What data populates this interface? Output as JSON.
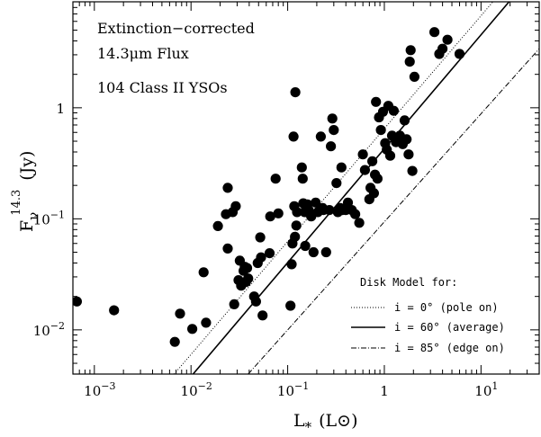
{
  "chart_data": {
    "type": "scatter",
    "annotation": [
      "Extinction−corrected",
      "14.3μm Flux",
      "104 Class II YSOs"
    ],
    "xlabel": {
      "main": "L",
      "sub": "*",
      "unit": "(L⊙)"
    },
    "ylabel": {
      "main": "F",
      "sub": "ν",
      "sup": "14.3",
      "unit": "(Jy)"
    },
    "x_scale": "log",
    "y_scale": "log",
    "xlim": [
      0.0006,
      40
    ],
    "ylim": [
      0.004,
      9
    ],
    "x_ticks": [
      {
        "value": 0.001,
        "base": "10",
        "exp": "−3"
      },
      {
        "value": 0.01,
        "base": "10",
        "exp": "−2"
      },
      {
        "value": 0.1,
        "base": "10",
        "exp": "−1"
      },
      {
        "value": 1,
        "base": "1",
        "exp": ""
      },
      {
        "value": 10,
        "base": "10",
        "exp": "1"
      }
    ],
    "y_ticks": [
      {
        "value": 0.01,
        "base": "10",
        "exp": "−2"
      },
      {
        "value": 0.1,
        "base": "10",
        "exp": "−1"
      },
      {
        "value": 1,
        "base": "1",
        "exp": ""
      }
    ],
    "grid": false,
    "legend": {
      "title": "Disk Model for:",
      "placement": "bottom-right",
      "entries": [
        {
          "label": "i = 0° (pole on)",
          "style": "dotted"
        },
        {
          "label": "i = 60° (average)",
          "style": "solid"
        },
        {
          "label": "i = 85° (edge on)",
          "style": "dashdot"
        }
      ]
    },
    "lines": [
      {
        "label": "i = 0° (pole on)",
        "style": "dotted",
        "points": [
          [
            0.0067,
            0.004
          ],
          [
            13.3,
            9
          ]
        ]
      },
      {
        "label": "i = 60° (average)",
        "style": "solid",
        "points": [
          [
            0.0105,
            0.004
          ],
          [
            19.5,
            9
          ]
        ]
      },
      {
        "label": "i = 85° (edge on)",
        "style": "dashdot",
        "points": [
          [
            0.039,
            0.004
          ],
          [
            40,
            3.4
          ]
        ]
      }
    ],
    "points": [
      [
        0.00066,
        0.018
      ],
      [
        0.0016,
        0.015
      ],
      [
        0.0068,
        0.0078
      ],
      [
        0.0077,
        0.014
      ],
      [
        0.0103,
        0.0102
      ],
      [
        0.0135,
        0.033
      ],
      [
        0.0143,
        0.0116
      ],
      [
        0.019,
        0.086
      ],
      [
        0.023,
        0.11
      ],
      [
        0.024,
        0.19
      ],
      [
        0.024,
        0.054
      ],
      [
        0.027,
        0.115
      ],
      [
        0.028,
        0.017
      ],
      [
        0.029,
        0.13
      ],
      [
        0.031,
        0.028
      ],
      [
        0.032,
        0.042
      ],
      [
        0.033,
        0.025
      ],
      [
        0.035,
        0.034
      ],
      [
        0.036,
        0.037
      ],
      [
        0.037,
        0.027
      ],
      [
        0.038,
        0.036
      ],
      [
        0.039,
        0.029
      ],
      [
        0.045,
        0.02
      ],
      [
        0.047,
        0.018
      ],
      [
        0.049,
        0.04
      ],
      [
        0.052,
        0.068
      ],
      [
        0.053,
        0.045
      ],
      [
        0.055,
        0.0135
      ],
      [
        0.065,
        0.049
      ],
      [
        0.066,
        0.105
      ],
      [
        0.075,
        0.23
      ],
      [
        0.08,
        0.112
      ],
      [
        0.107,
        0.0165
      ],
      [
        0.11,
        0.039
      ],
      [
        0.112,
        0.06
      ],
      [
        0.115,
        0.55
      ],
      [
        0.117,
        0.13
      ],
      [
        0.119,
        0.069
      ],
      [
        0.12,
        1.38
      ],
      [
        0.123,
        0.087
      ],
      [
        0.125,
        0.115
      ],
      [
        0.14,
        0.29
      ],
      [
        0.143,
        0.23
      ],
      [
        0.145,
        0.138
      ],
      [
        0.15,
        0.115
      ],
      [
        0.152,
        0.057
      ],
      [
        0.155,
        0.125
      ],
      [
        0.16,
        0.135
      ],
      [
        0.165,
        0.12
      ],
      [
        0.175,
        0.105
      ],
      [
        0.185,
        0.05
      ],
      [
        0.195,
        0.14
      ],
      [
        0.205,
        0.115
      ],
      [
        0.22,
        0.55
      ],
      [
        0.23,
        0.125
      ],
      [
        0.235,
        0.12
      ],
      [
        0.25,
        0.05
      ],
      [
        0.27,
        0.12
      ],
      [
        0.28,
        0.45
      ],
      [
        0.29,
        0.8
      ],
      [
        0.3,
        0.63
      ],
      [
        0.32,
        0.21
      ],
      [
        0.33,
        0.115
      ],
      [
        0.35,
        0.125
      ],
      [
        0.36,
        0.29
      ],
      [
        0.37,
        0.12
      ],
      [
        0.4,
        0.12
      ],
      [
        0.42,
        0.14
      ],
      [
        0.46,
        0.12
      ],
      [
        0.5,
        0.11
      ],
      [
        0.55,
        0.092
      ],
      [
        0.6,
        0.38
      ],
      [
        0.63,
        0.275
      ],
      [
        0.7,
        0.15
      ],
      [
        0.72,
        0.19
      ],
      [
        0.75,
        0.33
      ],
      [
        0.78,
        0.17
      ],
      [
        0.8,
        0.25
      ],
      [
        0.82,
        1.13
      ],
      [
        0.85,
        0.23
      ],
      [
        0.88,
        0.82
      ],
      [
        0.92,
        0.63
      ],
      [
        0.97,
        0.92
      ],
      [
        1.02,
        0.48
      ],
      [
        1.06,
        0.42
      ],
      [
        1.1,
        1.04
      ],
      [
        1.15,
        0.37
      ],
      [
        1.2,
        0.56
      ],
      [
        1.25,
        0.94
      ],
      [
        1.32,
        0.49
      ],
      [
        1.45,
        0.56
      ],
      [
        1.55,
        0.47
      ],
      [
        1.62,
        0.77
      ],
      [
        1.7,
        0.52
      ],
      [
        1.78,
        0.38
      ],
      [
        1.83,
        2.6
      ],
      [
        1.87,
        3.3
      ],
      [
        1.95,
        0.27
      ],
      [
        2.05,
        1.9
      ],
      [
        3.3,
        4.8
      ],
      [
        3.7,
        3.05
      ],
      [
        4.0,
        3.4
      ],
      [
        4.5,
        4.1
      ],
      [
        6.0,
        3.05
      ]
    ]
  }
}
